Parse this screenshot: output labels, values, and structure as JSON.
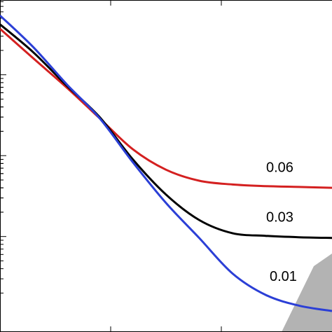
{
  "chart_data": {
    "type": "line",
    "log_y": true,
    "x": [
      0,
      0.3,
      0.6,
      0.9,
      1.2,
      1.5,
      1.8,
      2.1,
      2.4,
      2.7,
      3.0
    ],
    "xlim": [
      0,
      3
    ],
    "xticks": [
      1,
      2
    ],
    "ylim": [
      0.00066,
      8.4
    ],
    "yticks": [
      0.01,
      0.1,
      1
    ],
    "series": [
      {
        "name": "0.06",
        "color": "#d42020",
        "values": [
          3.7,
          1.6,
          0.7,
          0.29,
          0.12,
          0.067,
          0.049,
          0.044,
          0.042,
          0.041,
          0.04
        ]
      },
      {
        "name": "0.03",
        "color": "#000000",
        "values": [
          4.2,
          1.9,
          0.74,
          0.3,
          0.09,
          0.033,
          0.016,
          0.011,
          0.0102,
          0.0098,
          0.0096
        ]
      },
      {
        "name": "0.01",
        "color": "#2b3fd6",
        "values": [
          5.4,
          2.2,
          0.77,
          0.29,
          0.083,
          0.026,
          0.0096,
          0.0035,
          0.0019,
          0.0014,
          0.0012
        ]
      }
    ]
  }
}
